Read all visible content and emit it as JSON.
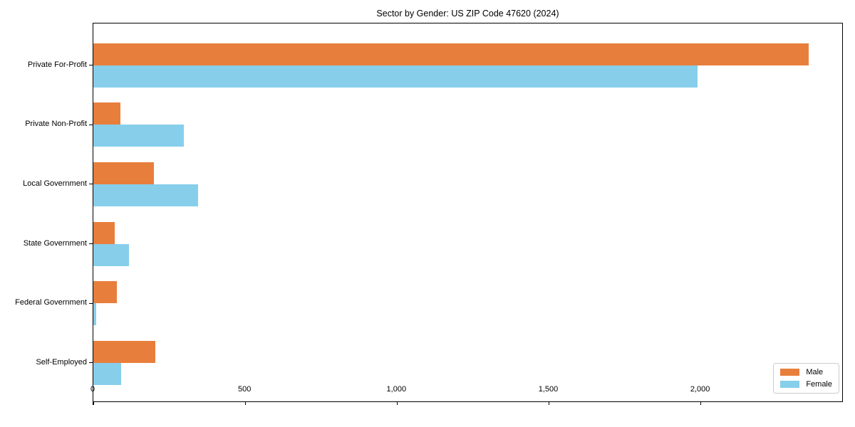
{
  "title": "Sector by Gender: US ZIP Code 47620 (2024)",
  "chart_data": {
    "type": "bar",
    "orientation": "horizontal",
    "title": "Sector by Gender: US ZIP Code 47620 (2024)",
    "categories": [
      "Private For-Profit",
      "Private Non-Profit",
      "Local Government",
      "State Government",
      "Federal Government",
      "Self-Employed"
    ],
    "series": [
      {
        "name": "Male",
        "color": "#E87E3C",
        "values": [
          2355,
          90,
          200,
          71,
          78,
          203
        ]
      },
      {
        "name": "Female",
        "color": "#87CEEB",
        "values": [
          1990,
          298,
          345,
          117,
          10,
          91
        ]
      }
    ],
    "xlabel": "",
    "ylabel": "",
    "xlim": [
      0,
      2470
    ],
    "xticks": {
      "values": [
        0,
        500,
        1000,
        1500,
        2000
      ],
      "labels": [
        "0",
        "500",
        "1,000",
        "1,500",
        "2,000"
      ]
    },
    "grid": false,
    "legend_position": "lower right",
    "background": "#ffffff",
    "spine_color": "#000000"
  },
  "legend": {
    "items": [
      {
        "label": "Male",
        "color": "#E87E3C"
      },
      {
        "label": "Female",
        "color": "#87CEEB"
      }
    ]
  }
}
